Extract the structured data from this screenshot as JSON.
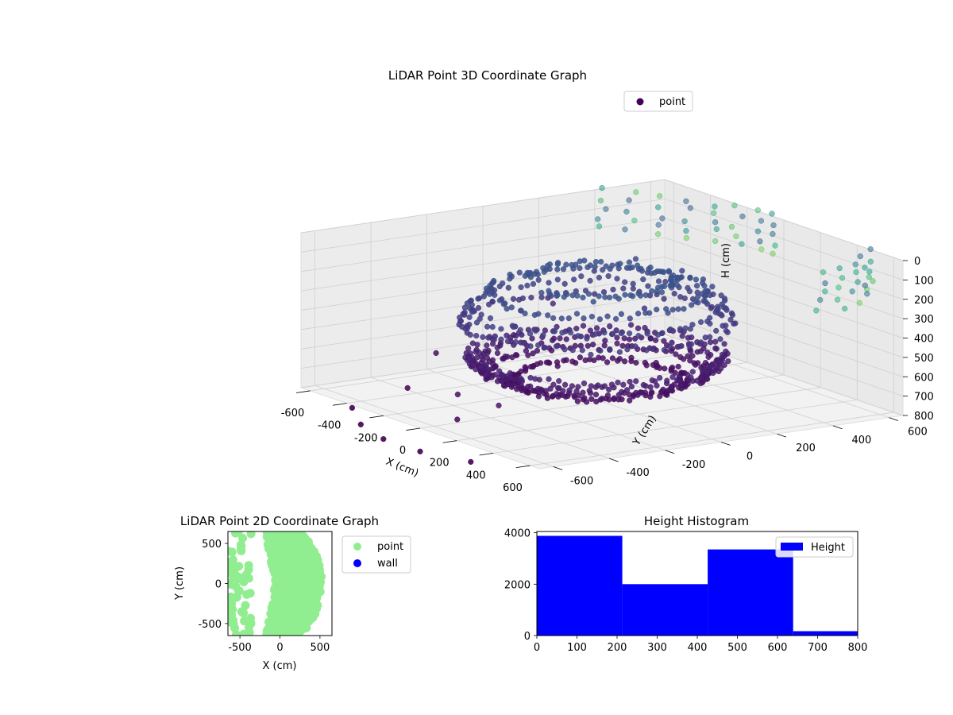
{
  "chart_data": [
    {
      "type": "scatter",
      "projection": "3d",
      "title": "LiDAR Point 3D Coordinate Graph",
      "xlabel": "X (cm)",
      "ylabel": "Y (cm)",
      "zlabel": "H (cm)",
      "xlim": [
        -650,
        650
      ],
      "ylim": [
        -650,
        650
      ],
      "zlim": [
        0,
        800
      ],
      "z_axis_inverted": true,
      "xticks": [
        "-600",
        "-400",
        "-200",
        "0",
        "200",
        "400",
        "600"
      ],
      "yticks": [
        "-600",
        "-400",
        "-200",
        "0",
        "200",
        "400",
        "600"
      ],
      "zticks": [
        "0",
        "100",
        "200",
        "300",
        "400",
        "500",
        "600",
        "700",
        "800"
      ],
      "colormap": "viridis",
      "grid": true,
      "legend": {
        "position": "top-right",
        "entries": [
          {
            "label": "point",
            "color": "#440154"
          }
        ]
      },
      "series": [
        {
          "name": "point",
          "description_colors": "colored by height (viridis)",
          "structure": {
            "rings": [
              {
                "h": 190,
                "r": 230,
                "from": -80,
                "to": 220,
                "step": 4
              },
              {
                "h": 250,
                "r": 330,
                "from": -100,
                "to": 250,
                "step": 4
              },
              {
                "h": 330,
                "r": 380,
                "from": -110,
                "to": 250,
                "step": 4
              },
              {
                "h": 400,
                "r": 400,
                "from": -120,
                "to": 250,
                "step": 4
              },
              {
                "h": 580,
                "r": 380,
                "from": -120,
                "to": 250,
                "step": 3
              },
              {
                "h": 620,
                "r": 360,
                "from": -130,
                "to": 250,
                "step": 3
              },
              {
                "h": 660,
                "r": 330,
                "from": -130,
                "to": 250,
                "step": 3
              },
              {
                "h": 700,
                "r": 260,
                "from": -130,
                "to": 250,
                "step": 3
              }
            ],
            "columns": [
              {
                "x": -640,
                "y": 420
              },
              {
                "x": -560,
                "y": 470
              },
              {
                "x": -470,
                "y": 520
              },
              {
                "x": -380,
                "y": 560
              },
              {
                "x": -300,
                "y": 600
              },
              {
                "x": -220,
                "y": 630
              },
              {
                "x": -140,
                "y": 650
              },
              {
                "x": -60,
                "y": 650
              },
              {
                "x": 480,
                "y": 650
              },
              {
                "x": 540,
                "y": 580
              },
              {
                "x": 600,
                "y": 510
              },
              {
                "x": 640,
                "y": 440
              },
              {
                "x": 650,
                "y": 360
              }
            ],
            "column_heights": [
              0,
              50,
              100,
              150,
              200
            ],
            "scattered": [
              {
                "x": -500,
                "y": 300,
                "h": 350
              },
              {
                "x": -420,
                "y": 100,
                "h": 450
              },
              {
                "x": -300,
                "y": -100,
                "h": 520
              },
              {
                "x": -200,
                "y": -300,
                "h": 600
              },
              {
                "x": -100,
                "y": -450,
                "h": 700
              },
              {
                "x": 50,
                "y": -550,
                "h": 760
              },
              {
                "x": -550,
                "y": 50,
                "h": 600
              },
              {
                "x": -600,
                "y": -200,
                "h": 700
              },
              {
                "x": -450,
                "y": -400,
                "h": 790
              },
              {
                "x": -350,
                "y": 350,
                "h": 250
              },
              {
                "x": -250,
                "y": 450,
                "h": 300
              },
              {
                "x": -150,
                "y": 250,
                "h": 420
              },
              {
                "x": -600,
                "y": 200,
                "h": 500
              },
              {
                "x": 200,
                "y": -500,
                "h": 650
              },
              {
                "x": 300,
                "y": -350,
                "h": 560
              }
            ],
            "below": [
              {
                "x": -400,
                "y": -600,
                "h": 800
              },
              {
                "x": -200,
                "y": -650,
                "h": 800
              },
              {
                "x": 0,
                "y": -650,
                "h": 800
              },
              {
                "x": 200,
                "y": -600,
                "h": 800
              },
              {
                "x": -600,
                "y": -500,
                "h": 800
              }
            ]
          }
        }
      ]
    },
    {
      "type": "scatter",
      "title": "LiDAR Point 2D Coordinate Graph",
      "xlabel": "X (cm)",
      "ylabel": "Y (cm)",
      "xlim": [
        -650,
        650
      ],
      "ylim": [
        -650,
        650
      ],
      "xticks": [
        "-500",
        "0",
        "500"
      ],
      "yticks": [
        "-500",
        "0",
        "500"
      ],
      "legend": {
        "position": "outside-right",
        "entries": [
          {
            "label": "point",
            "color": "#90ee90"
          },
          {
            "label": "wall",
            "color": "#0000ff"
          }
        ]
      },
      "series": [
        {
          "name": "point",
          "color": "#90ee90",
          "region": {
            "type": "crescent",
            "inner_x_edge": -50,
            "outer_x": 520
          }
        },
        {
          "name": "wall",
          "color": "#0000ff",
          "points": []
        }
      ]
    },
    {
      "type": "histogram",
      "title": "Height Histogram",
      "xlabel": "",
      "ylabel": "",
      "xlim": [
        0,
        800
      ],
      "ylim": [
        0,
        4050
      ],
      "xticks": [
        "0",
        "100",
        "200",
        "300",
        "400",
        "500",
        "600",
        "700",
        "800"
      ],
      "yticks": [
        "0",
        "2000",
        "4000"
      ],
      "legend": {
        "position": "top-right",
        "entries": [
          {
            "label": "Height",
            "color": "#0000ff"
          }
        ]
      },
      "bins": [
        {
          "from": 0,
          "to": 213,
          "count": 3880
        },
        {
          "from": 213,
          "to": 426,
          "count": 2000
        },
        {
          "from": 426,
          "to": 639,
          "count": 3350
        },
        {
          "from": 639,
          "to": 852,
          "count": 170
        }
      ],
      "color": "#0000ff"
    }
  ]
}
